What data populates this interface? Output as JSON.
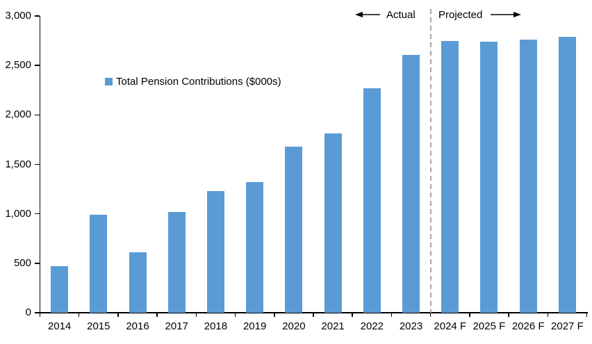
{
  "chart_data": {
    "type": "bar",
    "title": "",
    "categories": [
      "2014",
      "2015",
      "2016",
      "2017",
      "2018",
      "2019",
      "2020",
      "2021",
      "2022",
      "2023",
      "2024 F",
      "2025 F",
      "2026 F",
      "2027 F"
    ],
    "values": [
      470,
      990,
      610,
      1020,
      1230,
      1320,
      1680,
      1810,
      2270,
      2610,
      2750,
      2740,
      2760,
      2790
    ],
    "series_name": "Total Pension Contributions ($000s)",
    "xlabel": "",
    "ylabel": "",
    "ylim": [
      0,
      3000
    ],
    "y_ticks": [
      0,
      500,
      1000,
      1500,
      2000,
      2500,
      3000
    ],
    "y_tick_labels": [
      "0",
      "500",
      "1,000",
      "1,500",
      "2,000",
      "2,500",
      "3,000"
    ],
    "grid": false,
    "legend_position": "inside-upper-left",
    "bar_color": "#5B9BD5",
    "axis_color": "#000000",
    "annotations": {
      "actual_label": "Actual",
      "projected_label": "Projected",
      "divider_after_category": "2023",
      "divider_color": "#A6A6A6",
      "arrow_color": "#000000"
    }
  }
}
